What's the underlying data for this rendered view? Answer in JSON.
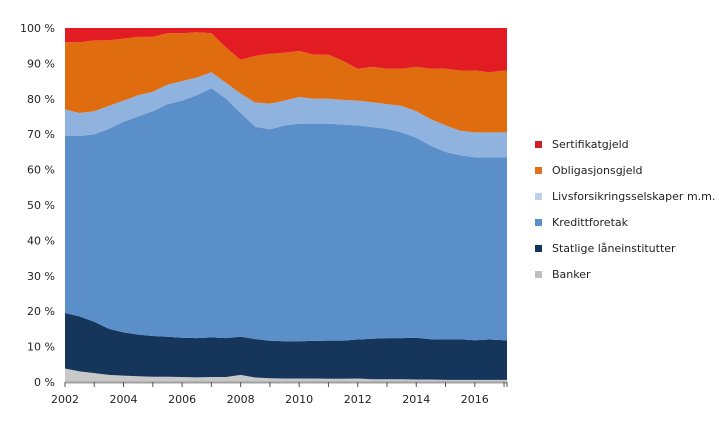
{
  "chart_data": {
    "type": "area",
    "stacked": true,
    "title": "",
    "xlabel": "",
    "ylabel": "",
    "ylim": [
      0,
      100
    ],
    "xlim": [
      2002,
      2017.1
    ],
    "y_ticks": [
      "0 %",
      "10 %",
      "20 %",
      "30 %",
      "40 %",
      "50 %",
      "60 %",
      "70 %",
      "80 %",
      "90 %",
      "100 %"
    ],
    "x_ticks": [
      "2002",
      "2004",
      "2006",
      "2008",
      "2010",
      "2012",
      "2014",
      "2016"
    ],
    "grid": false,
    "legend_position": "right",
    "x": [
      2002.0,
      2002.5,
      2003.0,
      2003.5,
      2004.0,
      2004.5,
      2005.0,
      2005.5,
      2006.0,
      2006.5,
      2007.0,
      2007.5,
      2008.0,
      2008.5,
      2009.0,
      2009.5,
      2010.0,
      2010.5,
      2011.0,
      2011.5,
      2012.0,
      2012.5,
      2013.0,
      2013.5,
      2014.0,
      2014.5,
      2015.0,
      2015.5,
      2016.0,
      2016.5,
      2017.0
    ],
    "series": [
      {
        "name": "Banker",
        "color": "#c8c8c8",
        "values": [
          3.8,
          3.0,
          2.5,
          2.0,
          1.8,
          1.6,
          1.5,
          1.5,
          1.4,
          1.3,
          1.4,
          1.4,
          2.0,
          1.2,
          1.0,
          1.0,
          1.0,
          1.0,
          0.9,
          0.9,
          1.0,
          0.8,
          0.8,
          0.8,
          0.7,
          0.7,
          0.6,
          0.6,
          0.6,
          0.6,
          0.6
        ]
      },
      {
        "name": "Statlige låneinstitutter",
        "color": "#15355a",
        "values": [
          15.7,
          15.5,
          14.5,
          13.0,
          12.2,
          11.8,
          11.5,
          11.3,
          11.1,
          11.1,
          11.2,
          11.0,
          10.8,
          10.3,
          10.2,
          10.5,
          10.5,
          10.6,
          10.8,
          10.8,
          11.0,
          11.4,
          11.6,
          11.6,
          11.8,
          11.4,
          11.4,
          11.5,
          11.2,
          11.4,
          11.2
        ]
      },
      {
        "name": "Kreditt­foretak",
        "color": "#5b8fc9",
        "values": [
          50.0,
          51.0,
          53.0,
          56.5,
          59.5,
          61.6,
          63.5,
          65.7,
          67.0,
          68.6,
          70.4,
          67.6,
          63.2,
          57.0,
          57.3,
          61.0,
          61.5,
          61.4,
          61.3,
          61.0,
          60.5,
          59.8,
          59.1,
          58.1,
          56.5,
          54.6,
          53.0,
          51.9,
          51.7,
          51.5,
          51.7
        ]
      },
      {
        "name": "Livsforsikringsselskaper m.m.",
        "color": "#8fb2df",
        "values": [
          7.5,
          6.5,
          6.5,
          6.5,
          6.0,
          6.0,
          5.5,
          5.5,
          5.5,
          5.0,
          4.5,
          4.5,
          5.5,
          6.5,
          7.0,
          7.0,
          7.5,
          7.0,
          7.0,
          7.0,
          7.0,
          7.0,
          7.0,
          7.5,
          7.5,
          7.5,
          7.5,
          7.0,
          7.0,
          7.0,
          7.0
        ]
      },
      {
        "name": "Obligasjonsgjeld",
        "color": "#e06c10",
        "values": [
          19.0,
          20.0,
          20.0,
          18.5,
          17.5,
          16.5,
          15.5,
          14.5,
          13.5,
          12.8,
          11.0,
          10.0,
          9.5,
          12.5,
          13.5,
          13.5,
          13.0,
          12.5,
          12.5,
          11.0,
          9.0,
          10.0,
          10.0,
          10.5,
          12.5,
          14.3,
          16.0,
          17.0,
          17.5,
          17.0,
          17.5
        ]
      },
      {
        "name": "Sertifikatgjeld",
        "color": "#e31b23",
        "values": [
          4.0,
          4.0,
          3.5,
          3.5,
          3.0,
          2.5,
          2.5,
          1.5,
          1.5,
          1.2,
          1.5,
          5.5,
          9.0,
          7.5,
          7.0,
          7.0,
          6.5,
          7.5,
          7.5,
          9.3,
          11.5,
          11.0,
          11.5,
          11.5,
          11.0,
          11.5,
          11.5,
          12.0,
          12.0,
          12.5,
          12.0
        ]
      }
    ],
    "legend": [
      {
        "label": "Sertifikatgjeld",
        "color": "#d0202a"
      },
      {
        "label": "Obligasjonsgjeld",
        "color": "#e0701a"
      },
      {
        "label": "Livsforsikringsselskaper m.m.",
        "color": "#bcd0ea"
      },
      {
        "label": "Kredittforetak",
        "color": "#5b8fc9"
      },
      {
        "label": "Statlige låneinstitutter",
        "color": "#15355a"
      },
      {
        "label": "Banker",
        "color": "#c0c0c0"
      }
    ]
  }
}
